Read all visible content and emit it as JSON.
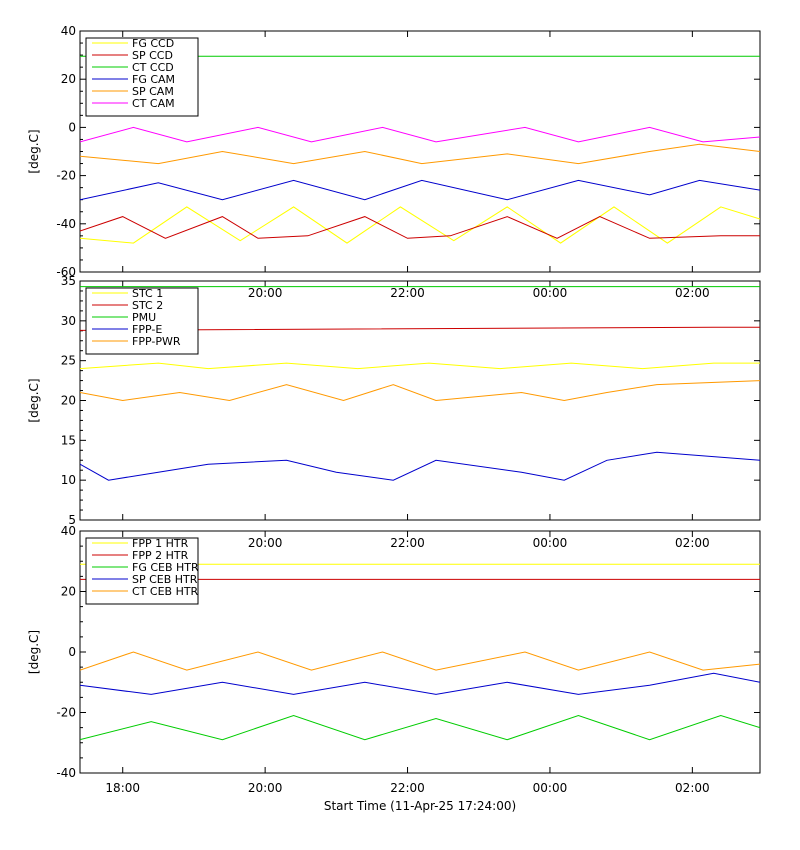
{
  "figure": {
    "xlabel": "Start Time (11-Apr-25 17:24:00)",
    "x_tick_labels": [
      "18:00",
      "20:00",
      "22:00",
      "00:00",
      "02:00"
    ]
  },
  "chart_data": [
    {
      "type": "line",
      "ylabel": "[deg.C]",
      "ylim": [
        -60,
        40
      ],
      "yticks": [
        -60,
        -40,
        -20,
        0,
        20,
        40
      ],
      "x_unit": "hours since 17:24",
      "xlim": [
        0,
        9.55
      ],
      "x_ticks": [
        "18:00",
        "20:00",
        "22:00",
        "00:00",
        "02:00"
      ],
      "legend": "top-left",
      "series": [
        {
          "name": "FG CCD",
          "color": "#ffff00",
          "x": [
            0,
            0.75,
            1.5,
            2.25,
            3.0,
            3.75,
            4.5,
            5.25,
            6.0,
            6.75,
            7.5,
            8.25,
            9.0,
            9.55
          ],
          "values": [
            -46,
            -48,
            -33,
            -47,
            -33,
            -48,
            -33,
            -47,
            -33,
            -48,
            -33,
            -48,
            -33,
            -38
          ]
        },
        {
          "name": "SP CCD",
          "color": "#cc0000",
          "x": [
            0,
            0.6,
            1.2,
            2.0,
            2.5,
            3.2,
            4.0,
            4.6,
            5.2,
            6.0,
            6.7,
            7.3,
            8.0,
            9.0,
            9.55
          ],
          "values": [
            -43,
            -37,
            -46,
            -37,
            -46,
            -45,
            -37,
            -46,
            -45,
            -37,
            -46,
            -37,
            -46,
            -45,
            -45
          ]
        },
        {
          "name": "CT CCD",
          "color": "#00cc00",
          "x": [
            0,
            9.55
          ],
          "values": [
            29.5,
            29.5
          ]
        },
        {
          "name": "FG CAM",
          "color": "#0000cc",
          "x": [
            0,
            1.1,
            2.0,
            3.0,
            4.0,
            4.8,
            6.0,
            7.0,
            8.0,
            8.7,
            9.55
          ],
          "values": [
            -30,
            -23,
            -30,
            -22,
            -30,
            -22,
            -30,
            -22,
            -28,
            -22,
            -26
          ]
        },
        {
          "name": "SP CAM",
          "color": "#ff9900",
          "x": [
            0,
            1.1,
            2.0,
            3.0,
            4.0,
            4.8,
            6.0,
            7.0,
            8.0,
            8.7,
            9.55
          ],
          "values": [
            -12,
            -15,
            -10,
            -15,
            -10,
            -15,
            -11,
            -15,
            -10,
            -7,
            -10
          ]
        },
        {
          "name": "CT CAM",
          "color": "#ff00ff",
          "x": [
            0,
            0.75,
            1.5,
            2.5,
            3.25,
            4.25,
            5.0,
            6.25,
            7.0,
            8.0,
            8.75,
            9.55
          ],
          "values": [
            -6,
            0,
            -6,
            0,
            -6,
            0,
            -6,
            0,
            -6,
            0,
            -6,
            -4
          ]
        }
      ]
    },
    {
      "type": "line",
      "ylabel": "[deg.C]",
      "ylim": [
        5,
        35
      ],
      "yticks": [
        5,
        10,
        15,
        20,
        25,
        30,
        35
      ],
      "x_unit": "hours since 17:24",
      "xlim": [
        0,
        9.55
      ],
      "x_ticks": [
        "18:00",
        "20:00",
        "22:00",
        "00:00",
        "02:00"
      ],
      "legend": "top-left",
      "series": [
        {
          "name": "STC 1",
          "color": "#ffff00",
          "x": [
            0,
            1.1,
            1.8,
            2.9,
            3.9,
            4.9,
            5.9,
            6.9,
            7.9,
            8.9,
            9.55
          ],
          "values": [
            24,
            24.7,
            24,
            24.7,
            24,
            24.7,
            24,
            24.7,
            24,
            24.7,
            24.7
          ]
        },
        {
          "name": "STC 2",
          "color": "#cc0000",
          "x": [
            0,
            8.9,
            9.55
          ],
          "values": [
            28.8,
            29.2,
            29.2
          ]
        },
        {
          "name": "PMU",
          "color": "#00cc00",
          "x": [
            0,
            9.55
          ],
          "values": [
            34.3,
            34.3
          ]
        },
        {
          "name": "FPP-E",
          "color": "#0000cc",
          "x": [
            0,
            0.4,
            1.1,
            1.8,
            2.9,
            3.6,
            4.4,
            5.0,
            6.2,
            6.8,
            7.4,
            8.1,
            9.55
          ],
          "values": [
            12,
            10,
            11,
            12,
            12.5,
            11,
            10,
            12.5,
            11,
            10,
            12.5,
            13.5,
            12.5
          ]
        },
        {
          "name": "FPP-PWR",
          "color": "#ff9900",
          "x": [
            0,
            0.6,
            1.4,
            2.1,
            2.9,
            3.7,
            4.4,
            5.0,
            6.2,
            6.8,
            7.4,
            8.1,
            9.55
          ],
          "values": [
            21,
            20,
            21,
            20,
            22,
            20,
            22,
            20,
            21,
            20,
            21,
            22,
            22.5
          ]
        }
      ]
    },
    {
      "type": "line",
      "ylabel": "[deg.C]",
      "ylim": [
        -40,
        40
      ],
      "yticks": [
        -40,
        -20,
        0,
        20,
        40
      ],
      "x_unit": "hours since 17:24",
      "xlim": [
        0,
        9.55
      ],
      "x_ticks": [
        "18:00",
        "20:00",
        "22:00",
        "00:00",
        "02:00"
      ],
      "legend": "top-left",
      "series": [
        {
          "name": "FPP 1 HTR",
          "color": "#ffff00",
          "x": [
            0,
            9.55
          ],
          "values": [
            29,
            29
          ]
        },
        {
          "name": "FPP 2 HTR",
          "color": "#cc0000",
          "x": [
            0,
            9.55
          ],
          "values": [
            24,
            24
          ]
        },
        {
          "name": "FG CEB HTR",
          "color": "#00cc00",
          "x": [
            0,
            1.0,
            2.0,
            3.0,
            4.0,
            5.0,
            6.0,
            7.0,
            8.0,
            9.0,
            9.55
          ],
          "values": [
            -29,
            -23,
            -29,
            -21,
            -29,
            -22,
            -29,
            -21,
            -29,
            -21,
            -25
          ]
        },
        {
          "name": "SP CEB HTR",
          "color": "#0000cc",
          "x": [
            0,
            1.0,
            2.0,
            3.0,
            4.0,
            5.0,
            6.0,
            7.0,
            8.0,
            8.9,
            9.55
          ],
          "values": [
            -11,
            -14,
            -10,
            -14,
            -10,
            -14,
            -10,
            -14,
            -11,
            -7,
            -10
          ]
        },
        {
          "name": "CT CEB HTR",
          "color": "#ff9900",
          "x": [
            0,
            0.75,
            1.5,
            2.5,
            3.25,
            4.25,
            5.0,
            6.25,
            7.0,
            8.0,
            8.75,
            9.55
          ],
          "values": [
            -6,
            0,
            -6,
            0,
            -6,
            0,
            -6,
            0,
            -6,
            0,
            -6,
            -4
          ]
        }
      ]
    }
  ]
}
